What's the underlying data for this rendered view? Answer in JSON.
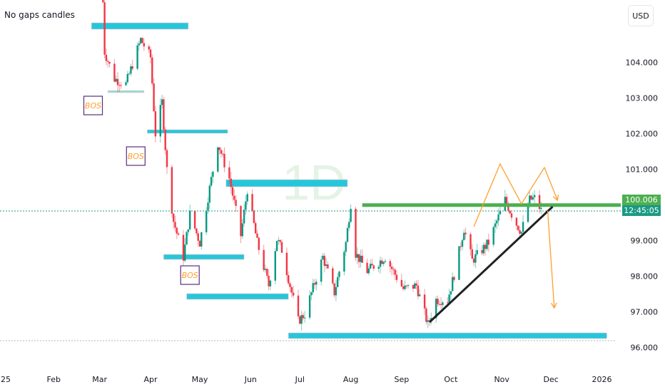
{
  "header": {
    "title": "No gaps candles",
    "currency": "USD"
  },
  "watermark": "1D",
  "price_labels": {
    "line_price": "100.006",
    "countdown": "12:45:05"
  },
  "colors": {
    "up": "#089981",
    "down": "#f23645",
    "zone": "#26c6da",
    "zone_light": "#8fdcd3",
    "support_line": "#4caf50",
    "trendline": "#222222",
    "projection": "#ff9f2e",
    "bos_border": "#5b2f7a",
    "bos_text": "#ff9f2e",
    "price_label": "#4caf50",
    "countdown_label": "#1a9a83"
  },
  "chart_data": {
    "type": "candlestick",
    "title": "",
    "y_axis": {
      "ticks": [
        "104.000",
        "103.000",
        "102.000",
        "101.000",
        "99.000",
        "98.000",
        "97.000",
        "96.000"
      ],
      "range": [
        95.3,
        105.76
      ]
    },
    "x_axis": {
      "ticks": [
        {
          "label": "25",
          "date": "2025-01-01"
        },
        {
          "label": "Feb",
          "date": "2025-02-01"
        },
        {
          "label": "Mar",
          "date": "2025-03-01"
        },
        {
          "label": "Apr",
          "date": "2025-04-01"
        },
        {
          "label": "May",
          "date": "2025-05-01"
        },
        {
          "label": "Jun",
          "date": "2025-06-01"
        },
        {
          "label": "Jul",
          "date": "2025-07-01"
        },
        {
          "label": "Aug",
          "date": "2025-08-01"
        },
        {
          "label": "Sep",
          "date": "2025-09-01"
        },
        {
          "label": "Oct",
          "date": "2025-10-01"
        },
        {
          "label": "Nov",
          "date": "2025-11-01"
        },
        {
          "label": "Dec",
          "date": "2025-12-01"
        },
        {
          "label": "2026",
          "date": "2026-01-01"
        }
      ]
    },
    "price_path": [
      [
        "2025-03-03",
        105.7
      ],
      [
        "2025-03-04",
        104.3
      ],
      [
        "2025-03-10",
        103.55
      ],
      [
        "2025-03-17",
        103.4
      ],
      [
        "2025-03-26",
        104.65
      ],
      [
        "2025-04-01",
        104.15
      ],
      [
        "2025-04-04",
        102.0
      ],
      [
        "2025-04-08",
        102.9
      ],
      [
        "2025-04-11",
        101.0
      ],
      [
        "2025-04-15",
        99.55
      ],
      [
        "2025-04-21",
        98.55
      ],
      [
        "2025-04-25",
        99.75
      ],
      [
        "2025-05-01",
        98.95
      ],
      [
        "2025-05-12",
        101.75
      ],
      [
        "2025-05-19",
        100.75
      ],
      [
        "2025-05-26",
        99.15
      ],
      [
        "2025-05-30",
        100.45
      ],
      [
        "2025-06-05",
        98.95
      ],
      [
        "2025-06-12",
        97.75
      ],
      [
        "2025-06-17",
        99.05
      ],
      [
        "2025-06-20",
        98.75
      ],
      [
        "2025-06-30",
        96.75
      ],
      [
        "2025-07-04",
        96.95
      ],
      [
        "2025-07-15",
        98.55
      ],
      [
        "2025-07-22",
        97.55
      ],
      [
        "2025-07-29",
        98.95
      ],
      [
        "2025-08-01",
        100.05
      ],
      [
        "2025-08-04",
        98.65
      ],
      [
        "2025-08-11",
        98.15
      ],
      [
        "2025-08-22",
        98.55
      ],
      [
        "2025-09-02",
        97.65
      ],
      [
        "2025-09-10",
        97.75
      ],
      [
        "2025-09-17",
        96.65
      ],
      [
        "2025-09-22",
        97.35
      ],
      [
        "2025-09-29",
        97.35
      ],
      [
        "2025-10-03",
        98.05
      ],
      [
        "2025-10-09",
        99.35
      ],
      [
        "2025-10-14",
        98.45
      ],
      [
        "2025-10-24",
        98.95
      ],
      [
        "2025-11-03",
        100.15
      ],
      [
        "2025-11-09",
        99.55
      ],
      [
        "2025-11-13",
        99.25
      ],
      [
        "2025-11-18",
        100.15
      ],
      [
        "2025-11-21",
        100.2
      ],
      [
        "2025-11-25",
        99.85
      ]
    ],
    "zones": [
      {
        "from": "2025-02-24",
        "to": "2025-04-24",
        "high": 105.12,
        "low": 104.94,
        "style": "zone"
      },
      {
        "from": "2025-03-06",
        "to": "2025-03-28",
        "high": 103.22,
        "low": 103.16,
        "style": "zone_light"
      },
      {
        "from": "2025-03-30",
        "to": "2025-05-18",
        "high": 102.12,
        "low": 102.02,
        "style": "zone"
      },
      {
        "from": "2025-05-17",
        "to": "2025-07-30",
        "high": 100.72,
        "low": 100.52,
        "style": "zone"
      },
      {
        "from": "2025-04-09",
        "to": "2025-05-28",
        "high": 98.62,
        "low": 98.48,
        "style": "zone"
      },
      {
        "from": "2025-04-23",
        "to": "2025-06-24",
        "high": 97.52,
        "low": 97.36,
        "style": "zone"
      },
      {
        "from": "2025-06-24",
        "to": "2026-01-04",
        "high": 96.42,
        "low": 96.26,
        "style": "zone"
      }
    ],
    "support_line": {
      "from": "2025-08-08",
      "price": 100.006
    },
    "trendline": [
      [
        "2025-09-18",
        96.72
      ],
      [
        "2025-12-02",
        99.96
      ]
    ],
    "projection_zigzag": [
      [
        "2025-10-15",
        99.4
      ],
      [
        "2025-10-31",
        101.16
      ],
      [
        "2025-11-13",
        100.04
      ],
      [
        "2025-11-27",
        101.06
      ],
      [
        "2025-12-05",
        100.14
      ]
    ],
    "projection_arrow": [
      [
        "2025-11-29",
        99.84
      ],
      [
        "2025-12-03",
        97.12
      ]
    ],
    "annotations": [
      {
        "text": "BOS",
        "date": "2025-02-25",
        "price": 102.8
      },
      {
        "text": "BOS",
        "date": "2025-03-23",
        "price": 101.38
      },
      {
        "text": "BOS",
        "date": "2025-04-25",
        "price": 98.04
      }
    ],
    "last_price_line": 99.84
  }
}
